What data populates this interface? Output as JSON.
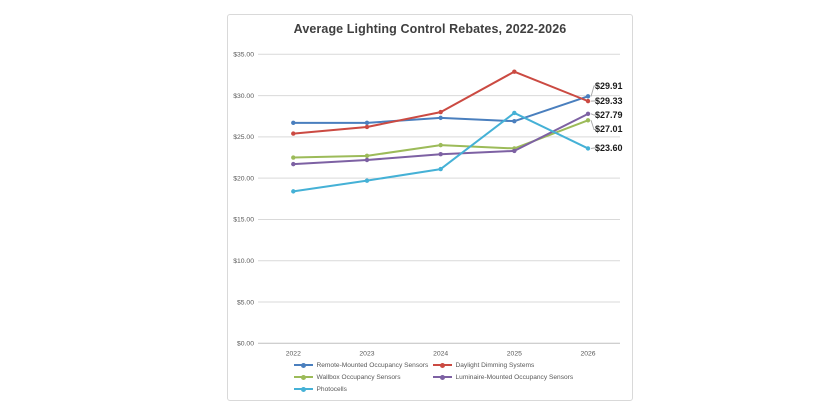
{
  "chart_data": {
    "type": "line",
    "title": "Average Lighting Control Rebates, 2022-2026",
    "categories": [
      "2022",
      "2023",
      "2024",
      "2025",
      "2026"
    ],
    "series": [
      {
        "name": "Remote-Mounted Occupancy Sensors",
        "color": "#4a7fbe",
        "values": [
          26.7,
          26.7,
          27.3,
          26.9,
          29.91
        ],
        "end_label": "$29.91"
      },
      {
        "name": "Daylight Dimming Systems",
        "color": "#cb4a42",
        "values": [
          25.4,
          26.2,
          28.0,
          32.9,
          29.33
        ],
        "end_label": "$29.33"
      },
      {
        "name": "Wallbox Occupancy Sensors",
        "color": "#9cbb59",
        "values": [
          22.5,
          22.7,
          24.0,
          23.6,
          27.01
        ],
        "end_label": "$27.01"
      },
      {
        "name": "Luminaire-Mounted Occupancy Sensors",
        "color": "#7d61a3",
        "values": [
          21.7,
          22.2,
          22.9,
          23.3,
          27.79
        ],
        "end_label": "$27.79"
      },
      {
        "name": "Photocells",
        "color": "#45b1d6",
        "values": [
          18.4,
          19.7,
          21.1,
          27.9,
          23.6
        ],
        "end_label": "$23.60"
      }
    ],
    "ylim": [
      0,
      35
    ],
    "ytick_step": 5,
    "ytick_labels": [
      "$35.00",
      "$30.00",
      "$25.00",
      "$20.00",
      "$15.00",
      "$10.00",
      "$5.00",
      "$0.00"
    ],
    "xlabel": "",
    "ylabel": "",
    "grid": true,
    "legend_position": "bottom",
    "colors": {
      "gridline": "#d9d9d9",
      "axis_line": "#bfbfbf",
      "tick_text": "#595959",
      "title_text": "#3f3f3f",
      "data_label_text": "#1a1a1a",
      "leader_line": "#a6a6a6",
      "chart_border": "#d9d9d9"
    }
  }
}
